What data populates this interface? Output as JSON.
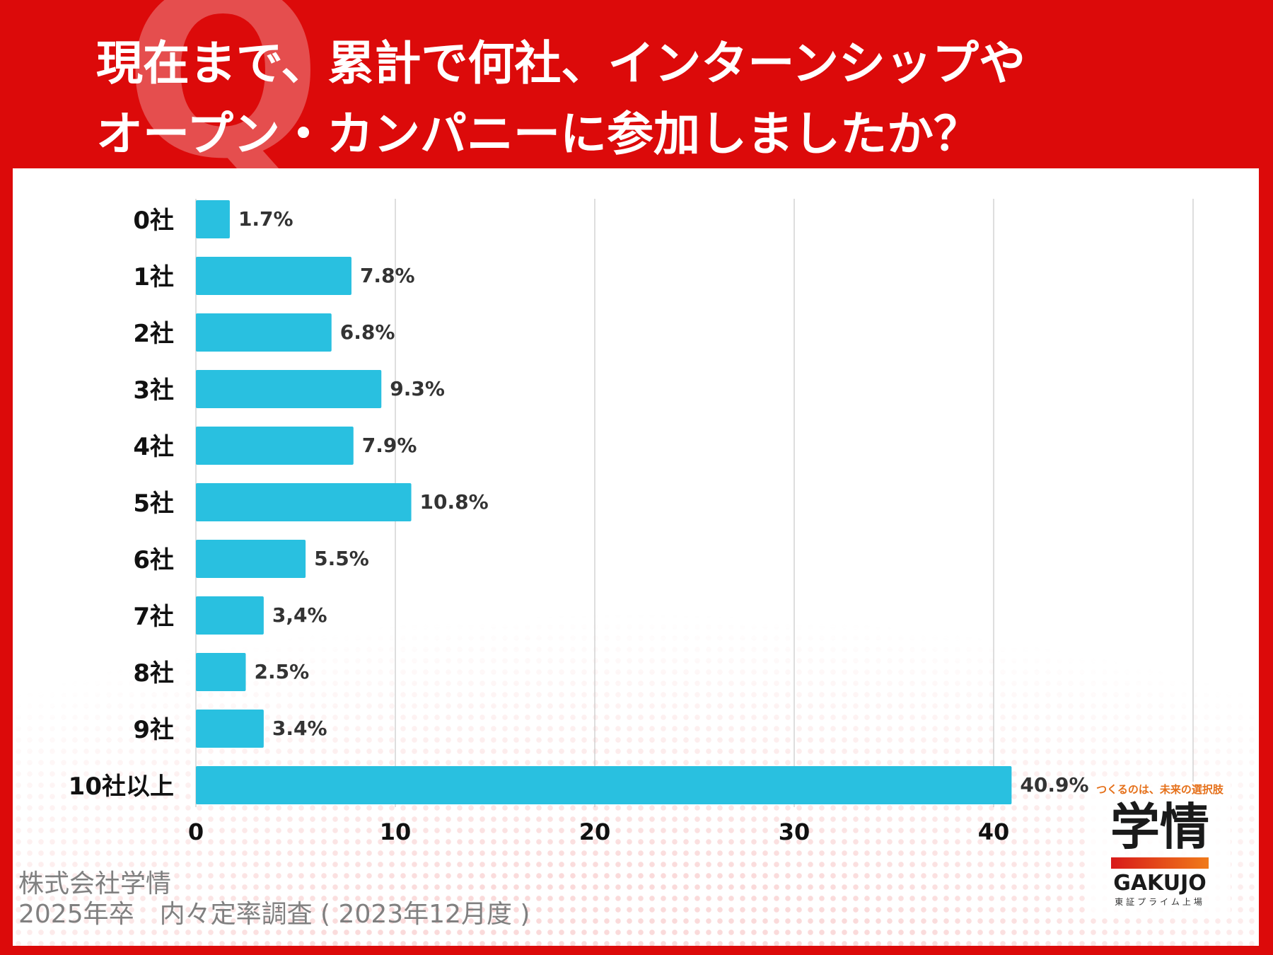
{
  "page": {
    "q_mark": "Q",
    "title_lines": [
      "現在まで、累計で何社、インターンシップや",
      "オープン・カンパニーに参加しましたか？"
    ]
  },
  "footer": {
    "line1": "株式会社学情",
    "line2": "2025年卒　内々定率調査 ( 2023年12月度 )"
  },
  "logo": {
    "tagline": "つくるのは、未来の選択肢",
    "brand": "学情",
    "brand_en": "GAKUJO",
    "listing": "東証プライム上場"
  },
  "colors": {
    "frame": "#dc0a0a",
    "bar": "#29c0e0",
    "grid": "#c8c8c8",
    "label": "#111111",
    "value_label": "#333333"
  },
  "chart_data": {
    "type": "bar",
    "orientation": "horizontal",
    "categories": [
      "0社",
      "1社",
      "2社",
      "3社",
      "4社",
      "5社",
      "6社",
      "7社",
      "8社",
      "9社",
      "10社以上"
    ],
    "values": [
      1.7,
      7.8,
      6.8,
      9.3,
      7.9,
      10.8,
      5.5,
      3.4,
      2.5,
      3.4,
      40.9
    ],
    "value_labels": [
      "1.7%",
      "7.8%",
      "6.8%",
      "9.3%",
      "7.9%",
      "10.8%",
      "5.5%",
      "3,4%",
      "2.5%",
      "3.4%",
      "40.9%"
    ],
    "xlim": [
      0,
      50
    ],
    "xticks": [
      0,
      10,
      20,
      30,
      40
    ],
    "grid": true,
    "legend": "none"
  }
}
